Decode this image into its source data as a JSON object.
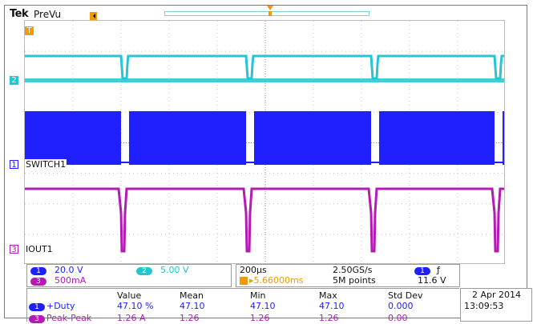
{
  "header": {
    "brand": "Tek",
    "mode": "PreVu"
  },
  "colors": {
    "ch1": "#2020ff",
    "ch2": "#25c6d0",
    "ch3": "#b41ab4",
    "trigger": "#f29a00"
  },
  "markers": {
    "trigger": "T",
    "ch2": "2",
    "ch1": "1",
    "ch3": "3"
  },
  "channels": {
    "ch1_label": "SWITCH1",
    "ch3_label": "IOUT1"
  },
  "scale": {
    "ch1_pill": "1",
    "ch1_value": "20.0 V",
    "ch2_pill": "2",
    "ch2_value": "5.00 V",
    "ch3_pill": "3",
    "ch3_value": "500mA"
  },
  "timebase": {
    "time_div": "200µs",
    "sample_rate": "2.50GS/s",
    "trigger_pos": "5.66000ms",
    "record": "5M points",
    "trigger_ch_pill": "1",
    "trigger_slope": "ƒ",
    "trigger_level": "11.6 V"
  },
  "measurements": {
    "headers": [
      "Value",
      "Mean",
      "Min",
      "Max",
      "Std Dev"
    ],
    "rows": [
      {
        "ch": "1",
        "name": "+Duty",
        "value": "47.10 %",
        "mean": "47.10",
        "min": "47.10",
        "max": "47.10",
        "std": "0.000"
      },
      {
        "ch": "3",
        "name": "Peak-Peak",
        "value": "1.26 A",
        "mean": "1.26",
        "min": "1.26",
        "max": "1.26",
        "std": "0.00"
      }
    ]
  },
  "datetime": {
    "date": "2 Apr  2014",
    "time": "13:09:53"
  }
}
